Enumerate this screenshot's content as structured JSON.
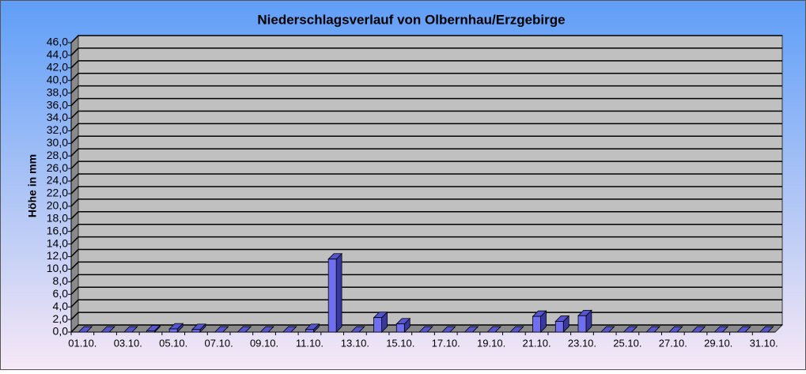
{
  "chart_data": {
    "type": "bar3d",
    "title": "Niederschlagsverlauf von Olbernhau/Erzgebirge",
    "y_label": "Höhe in mm",
    "categories": [
      "01.10.",
      null,
      "03.10.",
      null,
      "05.10.",
      null,
      "07.10.",
      null,
      "09.10.",
      null,
      "11.10.",
      null,
      "13.10.",
      null,
      "15.10.",
      null,
      "17.10.",
      null,
      "19.10.",
      null,
      "21.10.",
      null,
      "23.10.",
      null,
      "25.10.",
      null,
      "27.10.",
      null,
      "29.10.",
      null,
      "31.10."
    ],
    "values": [
      0,
      0,
      0,
      0.2,
      0.5,
      0.4,
      0,
      0,
      0,
      0,
      0.4,
      11.6,
      0,
      2.3,
      1.3,
      0,
      0,
      0,
      0,
      0,
      2.5,
      1.7,
      2.6,
      0,
      0,
      0,
      0,
      0,
      0,
      0,
      0
    ],
    "color": "#6f6ff0",
    "ylim": [
      0,
      46
    ],
    "yticks": [
      {
        "value": 0,
        "label": "0,0"
      },
      {
        "value": 2,
        "label": "2,0"
      },
      {
        "value": 4,
        "label": "4,0"
      },
      {
        "value": 6,
        "label": "6,0"
      },
      {
        "value": 8,
        "label": "8,0"
      },
      {
        "value": 10,
        "label": "10,0"
      },
      {
        "value": 12,
        "label": "12,0"
      },
      {
        "value": 14,
        "label": "14,0"
      },
      {
        "value": 16,
        "label": "16,0"
      },
      {
        "value": 18,
        "label": "18,0"
      },
      {
        "value": 20,
        "label": "20,0"
      },
      {
        "value": 22,
        "label": "22,0"
      },
      {
        "value": 24,
        "label": "24,0"
      },
      {
        "value": 26,
        "label": "26,0"
      },
      {
        "value": 28,
        "label": "28,0"
      },
      {
        "value": 30,
        "label": "30,0"
      },
      {
        "value": 32,
        "label": "32,0"
      },
      {
        "value": 34,
        "label": "34,0"
      },
      {
        "value": 36,
        "label": "36,0"
      },
      {
        "value": 38,
        "label": "38,0"
      },
      {
        "value": 40,
        "label": "40,0"
      },
      {
        "value": 42,
        "label": "42,0"
      },
      {
        "value": 44,
        "label": "44,0"
      },
      {
        "value": 46,
        "label": "46,0"
      }
    ],
    "grid": true
  }
}
